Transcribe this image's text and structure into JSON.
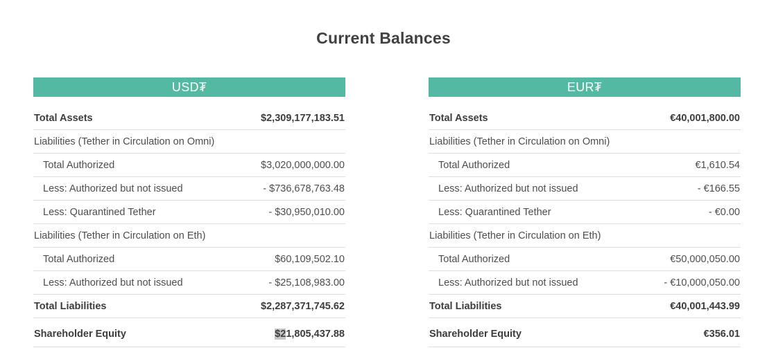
{
  "page": {
    "title": "Current Balances"
  },
  "tables": [
    {
      "id": "usdt",
      "header": "USD₮",
      "rows": [
        {
          "label": "Total Assets",
          "value": "$2,309,177,183.51",
          "style": "total"
        },
        {
          "label": "Liabilities (Tether in Circulation on Omni)",
          "value": "",
          "style": "section"
        },
        {
          "label": "Total Authorized",
          "value": "$3,020,000,000.00",
          "style": "sub"
        },
        {
          "label": "Less: Authorized but not issued",
          "value": "- $736,678,763.48",
          "style": "sub"
        },
        {
          "label": "Less: Quarantined Tether",
          "value": "- $30,950,010.00",
          "style": "sub"
        },
        {
          "label": "Liabilities (Tether in Circulation on Eth)",
          "value": "",
          "style": "section"
        },
        {
          "label": "Total Authorized",
          "value": "$60,109,502.10",
          "style": "sub"
        },
        {
          "label": "Less: Authorized but not issued",
          "value": "- $25,108,983.00",
          "style": "sub"
        },
        {
          "label": "Total Liabilities",
          "value": "$2,287,371,745.62",
          "style": "total"
        },
        {
          "label": "Shareholder Equity",
          "value": "$21,805,437.88",
          "style": "total",
          "value_selected": "$2",
          "value_rest": "1,805,437.88"
        }
      ]
    },
    {
      "id": "eurt",
      "header": "EUR₮",
      "rows": [
        {
          "label": "Total Assets",
          "value": "€40,001,800.00",
          "style": "total"
        },
        {
          "label": "Liabilities (Tether in Circulation on Omni)",
          "value": "",
          "style": "section"
        },
        {
          "label": "Total Authorized",
          "value": "€1,610.54",
          "style": "sub"
        },
        {
          "label": "Less: Authorized but not issued",
          "value": "- €166.55",
          "style": "sub"
        },
        {
          "label": "Less: Quarantined Tether",
          "value": "- €0.00",
          "style": "sub"
        },
        {
          "label": "Liabilities (Tether in Circulation on Eth)",
          "value": "",
          "style": "section"
        },
        {
          "label": "Total Authorized",
          "value": "€50,000,050.00",
          "style": "sub"
        },
        {
          "label": "Less: Authorized but not issued",
          "value": "- €10,000,050.00",
          "style": "sub"
        },
        {
          "label": "Total Liabilities",
          "value": "€40,001,443.99",
          "style": "total"
        },
        {
          "label": "Shareholder Equity",
          "value": "€356.01",
          "style": "total"
        }
      ]
    }
  ],
  "colors": {
    "header_teal": "#54b9a2",
    "text_dark": "#3d3d3d",
    "border": "#dedede",
    "selection": "#c6c6c6"
  }
}
